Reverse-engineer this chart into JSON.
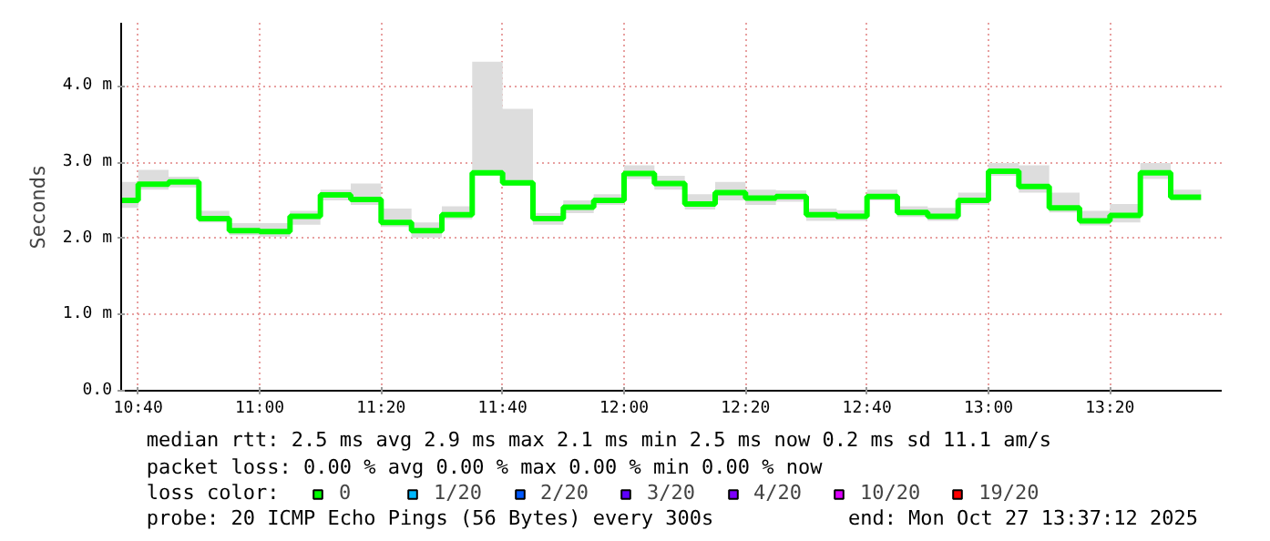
{
  "chart_data": {
    "type": "step",
    "ylabel": "Seconds",
    "x": [
      10.62,
      10.6667,
      10.75,
      10.8333,
      10.9167,
      11.0,
      11.0833,
      11.1667,
      11.25,
      11.3333,
      11.4167,
      11.5,
      11.5833,
      11.6667,
      11.75,
      11.8333,
      11.9167,
      12.0,
      12.0833,
      12.1667,
      12.25,
      12.3333,
      12.4167,
      12.5,
      12.5833,
      12.6667,
      12.75,
      12.8333,
      12.9167,
      13.0,
      13.0833,
      13.1667,
      13.25,
      13.3333,
      13.4167,
      13.5,
      13.5833
    ],
    "series": [
      {
        "name": "0",
        "color": "#00ff00",
        "values": [
          2.5,
          2.71,
          2.74,
          2.26,
          2.1,
          2.09,
          2.29,
          2.57,
          2.51,
          2.21,
          2.1,
          2.31,
          2.86,
          2.73,
          2.26,
          2.41,
          2.5,
          2.85,
          2.72,
          2.45,
          2.6,
          2.53,
          2.55,
          2.31,
          2.29,
          2.55,
          2.34,
          2.29,
          2.5,
          2.88,
          2.68,
          2.4,
          2.23,
          2.3,
          2.86,
          2.54,
          2.54
        ],
        "upper": [
          2.74,
          2.9,
          2.81,
          2.36,
          2.2,
          2.2,
          2.36,
          2.64,
          2.72,
          2.39,
          2.21,
          2.42,
          4.32,
          3.7,
          2.33,
          2.5,
          2.58,
          2.96,
          2.82,
          2.58,
          2.74,
          2.64,
          2.63,
          2.39,
          2.37,
          2.64,
          2.42,
          2.4,
          2.6,
          2.99,
          2.96,
          2.6,
          2.36,
          2.45,
          2.99,
          2.64,
          2.64
        ],
        "lower": [
          2.4,
          2.64,
          2.67,
          2.21,
          2.04,
          2.02,
          2.18,
          2.5,
          2.44,
          2.15,
          2.01,
          2.25,
          2.82,
          2.69,
          2.18,
          2.33,
          2.44,
          2.78,
          2.64,
          2.38,
          2.5,
          2.44,
          2.48,
          2.23,
          2.23,
          2.5,
          2.28,
          2.23,
          2.44,
          2.82,
          2.6,
          2.34,
          2.17,
          2.21,
          2.78,
          2.5,
          2.5
        ]
      },
      {
        "name": "1/20",
        "color": "#00b8ff",
        "values": [
          null,
          null,
          null,
          null,
          null,
          null,
          null,
          null,
          null,
          null,
          null,
          null,
          null,
          null,
          null,
          null,
          null,
          null,
          null,
          null,
          null,
          null,
          null,
          null,
          null,
          null,
          null,
          null,
          null,
          null,
          null,
          null,
          null,
          null,
          null,
          null,
          null
        ]
      },
      {
        "name": "2/20",
        "color": "#0059ff",
        "values": [
          null,
          null,
          null,
          null,
          null,
          null,
          null,
          null,
          null,
          null,
          null,
          null,
          null,
          null,
          null,
          null,
          null,
          null,
          null,
          null,
          null,
          null,
          null,
          null,
          null,
          null,
          null,
          null,
          null,
          null,
          null,
          null,
          null,
          null,
          null,
          null,
          null
        ]
      },
      {
        "name": "3/20",
        "color": "#5e00ff",
        "values": [
          null,
          null,
          null,
          null,
          null,
          null,
          null,
          null,
          null,
          null,
          null,
          null,
          null,
          null,
          null,
          null,
          null,
          null,
          null,
          null,
          null,
          null,
          null,
          null,
          null,
          null,
          null,
          null,
          null,
          null,
          null,
          null,
          null,
          null,
          null,
          null,
          null
        ]
      },
      {
        "name": "4/20",
        "color": "#7e00ff",
        "values": [
          null,
          null,
          null,
          null,
          null,
          null,
          null,
          null,
          null,
          null,
          null,
          null,
          null,
          null,
          null,
          null,
          null,
          null,
          null,
          null,
          null,
          null,
          null,
          null,
          null,
          null,
          null,
          null,
          null,
          null,
          null,
          null,
          null,
          null,
          null,
          null,
          null
        ]
      },
      {
        "name": "10/20",
        "color": "#dd00ff",
        "values": [
          null,
          null,
          null,
          null,
          null,
          null,
          null,
          null,
          null,
          null,
          null,
          null,
          null,
          null,
          null,
          null,
          null,
          null,
          null,
          null,
          null,
          null,
          null,
          null,
          null,
          null,
          null,
          null,
          null,
          null,
          null,
          null,
          null,
          null,
          null,
          null,
          null
        ]
      },
      {
        "name": "19/20",
        "color": "#ff0000",
        "values": [
          null,
          null,
          null,
          null,
          null,
          null,
          null,
          null,
          null,
          null,
          null,
          null,
          null,
          null,
          null,
          null,
          null,
          null,
          null,
          null,
          null,
          null,
          null,
          null,
          null,
          null,
          null,
          null,
          null,
          null,
          null,
          null,
          null,
          null,
          null,
          null,
          null
        ]
      }
    ],
    "legend_title": "loss color:",
    "legend": "bottom",
    "xlim": [
      10.62,
      13.64
    ],
    "xticks": [
      {
        "value": 10.6667,
        "label": "10:40"
      },
      {
        "value": 11.0,
        "label": "11:00"
      },
      {
        "value": 11.3333,
        "label": "11:20"
      },
      {
        "value": 11.6667,
        "label": "11:40"
      },
      {
        "value": 12.0,
        "label": "12:00"
      },
      {
        "value": 12.3333,
        "label": "12:20"
      },
      {
        "value": 12.6667,
        "label": "12:40"
      },
      {
        "value": 13.0,
        "label": "13:00"
      },
      {
        "value": 13.3333,
        "label": "13:20"
      }
    ],
    "ylim": [
      0,
      4.83
    ],
    "yticks": [
      {
        "value": 0,
        "label": "0.0"
      },
      {
        "value": 1,
        "label": "1.0 m"
      },
      {
        "value": 2,
        "label": "2.0 m"
      },
      {
        "value": 3,
        "label": "3.0 m"
      },
      {
        "value": 4,
        "label": "4.0 m"
      }
    ],
    "grid": true,
    "line_style": "solid",
    "annotations": [
      "median rtt:  2.5 ms avg  2.9 ms max  2.1 ms min  2.5 ms now  0.2 ms sd  11.1   am/s",
      "packet loss: 0.00 % avg  0.00 % max  0.00 % min  0.00 % now",
      "probe:       20 ICMP Echo Pings (56 Bytes) every 300s",
      "end: Mon Oct 27 13:37:12 2025"
    ]
  }
}
